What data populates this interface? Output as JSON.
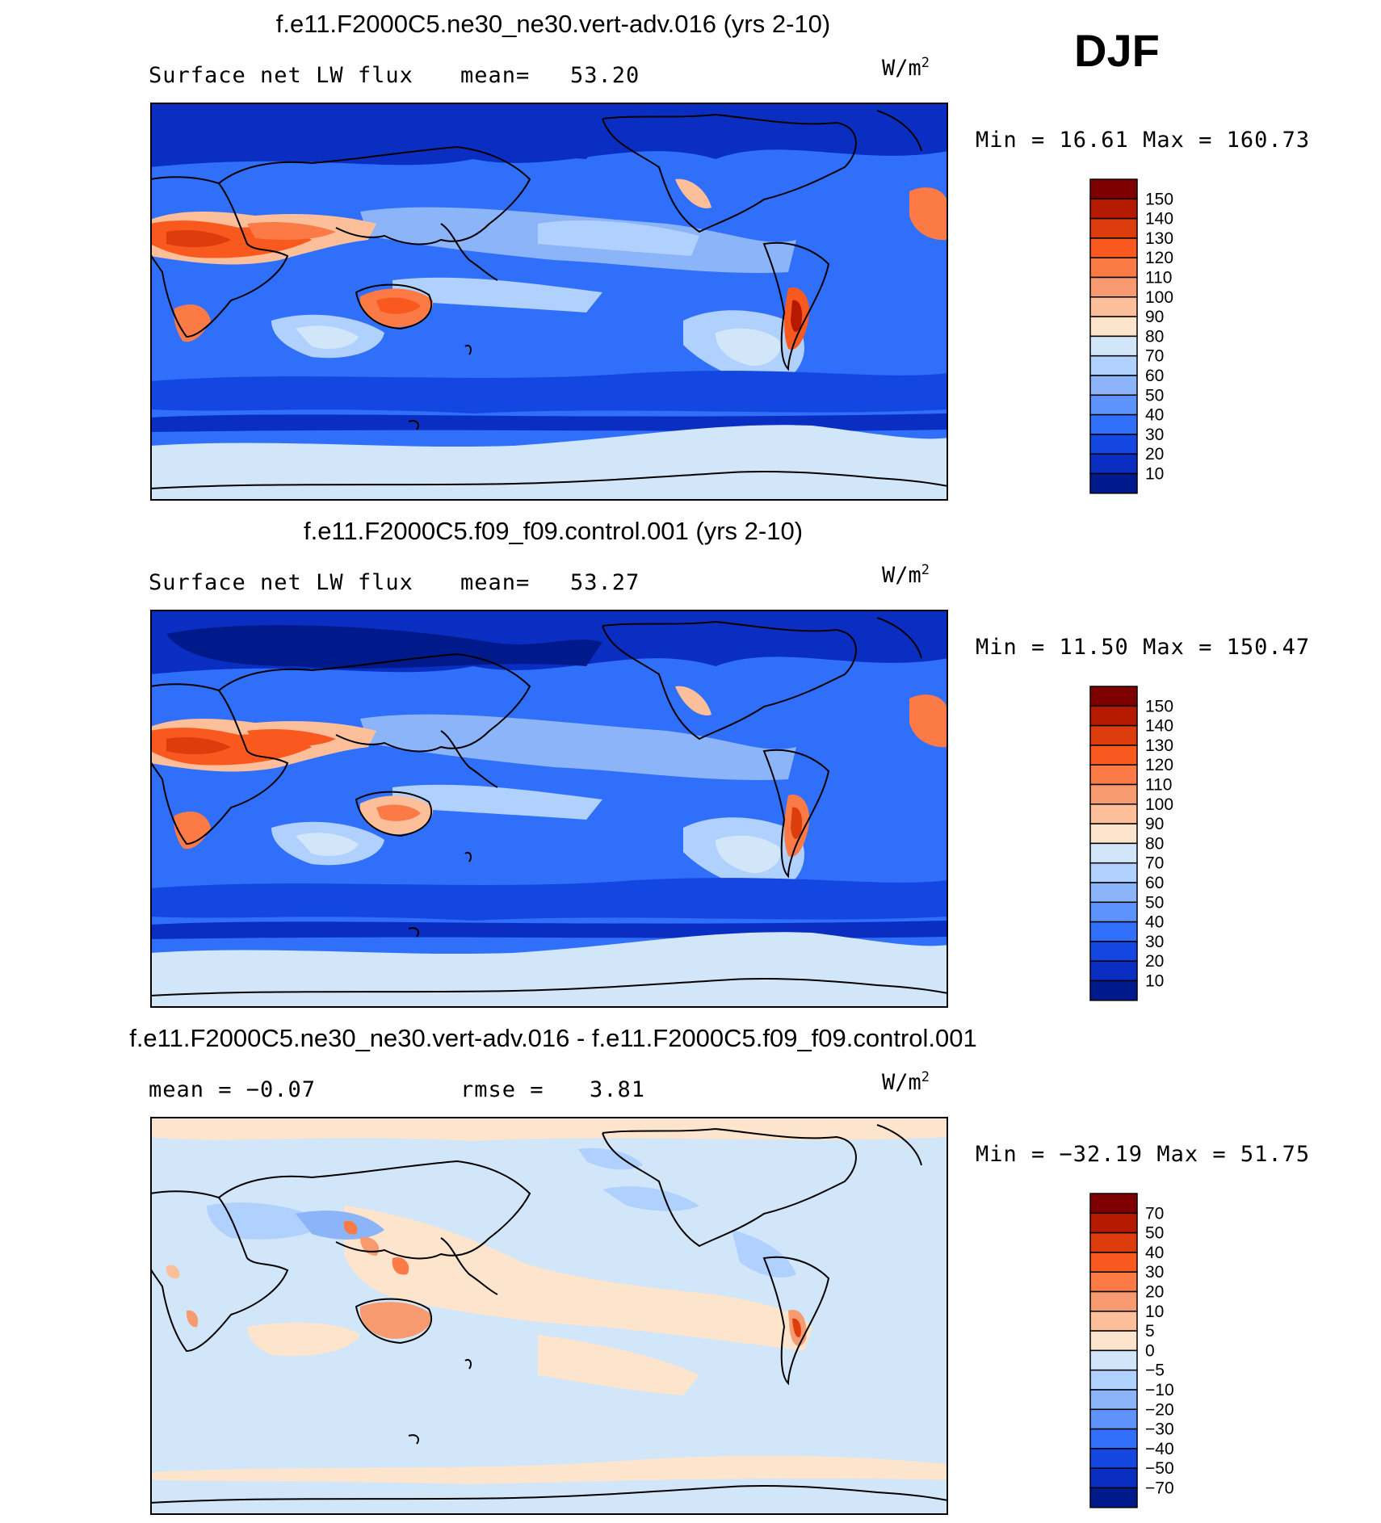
{
  "season": "DJF",
  "chart_data": [
    {
      "type": "heatmap",
      "title": "f.e11.F2000C5.ne30_ne30.vert-adv.016 (yrs 2-10)",
      "left_label": "Surface net LW flux",
      "stat_label": "mean=",
      "stat_value": "53.20",
      "units": "W/m",
      "units_sup": "2",
      "minmax": "Min =   16.61 Max = 160.73",
      "min": 16.61,
      "max": 160.73,
      "mean": 53.2,
      "colorbar": {
        "levels": [
          "150",
          "140",
          "130",
          "120",
          "110",
          "100",
          "90",
          "80",
          "70",
          "60",
          "50",
          "40",
          "30",
          "20",
          "10"
        ],
        "colors": [
          "#7f0000",
          "#b51a00",
          "#dd3c0c",
          "#f9581f",
          "#fc7a46",
          "#f79a70",
          "#fdbe9a",
          "#fde4cc",
          "#d1e6f9",
          "#b0d0fd",
          "#8cb4f9",
          "#5e93fb",
          "#2f6ffa",
          "#1447e1",
          "#0a2ec2",
          "#001a8c"
        ]
      }
    },
    {
      "type": "heatmap",
      "title": "f.e11.F2000C5.f09_f09.control.001 (yrs 2-10)",
      "left_label": "Surface net LW flux",
      "stat_label": "mean=",
      "stat_value": "53.27",
      "units": "W/m",
      "units_sup": "2",
      "minmax": "Min =   11.50 Max = 150.47",
      "min": 11.5,
      "max": 150.47,
      "mean": 53.27,
      "colorbar": {
        "levels": [
          "150",
          "140",
          "130",
          "120",
          "110",
          "100",
          "90",
          "80",
          "70",
          "60",
          "50",
          "40",
          "30",
          "20",
          "10"
        ],
        "colors": [
          "#7f0000",
          "#b51a00",
          "#dd3c0c",
          "#f9581f",
          "#fc7a46",
          "#f79a70",
          "#fdbe9a",
          "#fde4cc",
          "#d1e6f9",
          "#b0d0fd",
          "#8cb4f9",
          "#5e93fb",
          "#2f6ffa",
          "#1447e1",
          "#0a2ec2",
          "#001a8c"
        ]
      }
    },
    {
      "type": "heatmap",
      "title": "f.e11.F2000C5.ne30_ne30.vert-adv.016 - f.e11.F2000C5.f09_f09.control.001",
      "left_label": "mean =   −0.07",
      "stat_label": "rmse =",
      "stat_value": "3.81",
      "units": "W/m",
      "units_sup": "2",
      "minmax": "Min = −32.19 Max =   51.75",
      "min": -32.19,
      "max": 51.75,
      "mean": -0.07,
      "rmse": 3.81,
      "colorbar": {
        "levels": [
          "70",
          "50",
          "40",
          "30",
          "20",
          "10",
          "5",
          "0",
          "−5",
          "−10",
          "−20",
          "−30",
          "−40",
          "−50",
          "−70"
        ],
        "colors": [
          "#7f0000",
          "#b51a00",
          "#dd3c0c",
          "#f9581f",
          "#fc7a46",
          "#f79a70",
          "#fdbe9a",
          "#fde4cc",
          "#d1e6f9",
          "#b0d0fd",
          "#8cb4f9",
          "#5e93fb",
          "#2f6ffa",
          "#1447e1",
          "#0a2ec2",
          "#001a8c"
        ]
      }
    }
  ]
}
